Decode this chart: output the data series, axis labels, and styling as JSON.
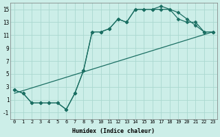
{
  "xlabel": "Humidex (Indice chaleur)",
  "bg_color": "#cceee8",
  "grid_color": "#aad8d0",
  "line_color": "#1a6e62",
  "line1_x": [
    0,
    23
  ],
  "line1_y": [
    2.0,
    11.5
  ],
  "line2_x": [
    0,
    1,
    2,
    3,
    4,
    5,
    6,
    7,
    8,
    9,
    10,
    11,
    12,
    13,
    14,
    15,
    16,
    17,
    18,
    19,
    20,
    21,
    22,
    23
  ],
  "line2_y": [
    2.5,
    2.0,
    0.5,
    0.5,
    0.5,
    0.5,
    -0.5,
    2.0,
    5.5,
    11.5,
    11.5,
    12.0,
    13.5,
    13.0,
    15.0,
    15.0,
    15.0,
    15.0,
    15.0,
    13.5,
    13.0,
    13.0,
    11.5,
    11.5
  ],
  "line3_x": [
    0,
    1,
    2,
    3,
    4,
    5,
    6,
    7,
    8,
    9,
    10,
    11,
    12,
    13,
    14,
    15,
    16,
    17,
    18,
    19,
    20,
    21,
    22,
    23
  ],
  "line3_y": [
    2.5,
    2.0,
    0.5,
    0.5,
    0.5,
    0.5,
    -0.5,
    2.0,
    5.5,
    11.5,
    11.5,
    12.0,
    13.5,
    13.0,
    15.0,
    15.0,
    15.0,
    15.5,
    15.0,
    14.5,
    13.5,
    12.5,
    11.5,
    11.5
  ],
  "marker_style": "D",
  "marker_size": 2.5,
  "xlim": [
    -0.5,
    23.5
  ],
  "ylim": [
    -2,
    16
  ],
  "yticks": [
    -1,
    1,
    3,
    5,
    7,
    9,
    11,
    13,
    15
  ],
  "xticks": [
    0,
    1,
    2,
    3,
    4,
    5,
    6,
    7,
    8,
    9,
    10,
    11,
    12,
    13,
    14,
    15,
    16,
    17,
    18,
    19,
    20,
    21,
    22,
    23
  ]
}
